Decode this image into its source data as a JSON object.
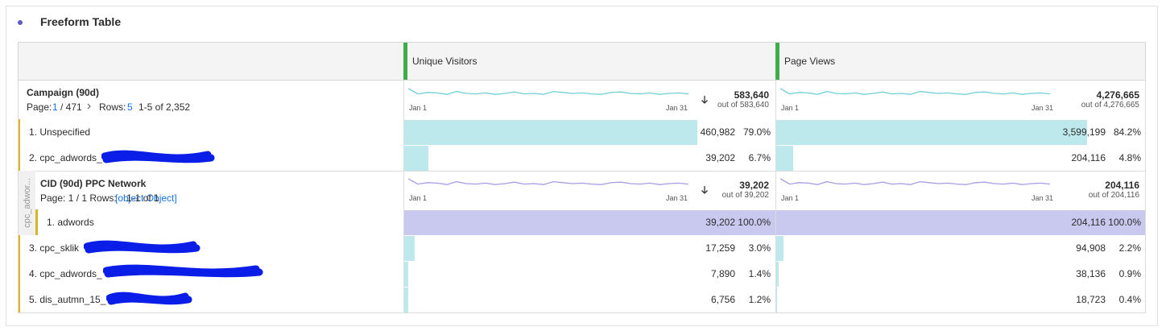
{
  "title": "Freeform Table",
  "columns": [
    "Unique Visitors",
    "Page Views"
  ],
  "dimension": {
    "name": "Campaign (90d)",
    "page_label": "Page:",
    "page": "1",
    "pages": "/ 471",
    "rows_label": "Rows:",
    "rows": "5",
    "range": "1-5 of 2,352",
    "totals": [
      {
        "value": "583,640",
        "out_of": "out of 583,640",
        "start": "Jan 1",
        "end": "Jan 31"
      },
      {
        "value": "4,276,665",
        "out_of": "out of 4,276,665",
        "start": "Jan 1",
        "end": "Jan 31"
      }
    ]
  },
  "rows": [
    {
      "label": "1. Unspecified",
      "cells": [
        {
          "value": "460,982",
          "percent": 79.0,
          "percent_label": "79.0%"
        },
        {
          "value": "3,599,199",
          "percent": 84.2,
          "percent_label": "84.2%"
        }
      ]
    },
    {
      "label": "2. cpc_adwords_",
      "cells": [
        {
          "value": "39,202",
          "percent": 6.7,
          "percent_label": "6.7%"
        },
        {
          "value": "204,116",
          "percent": 4.8,
          "percent_label": "4.8%"
        }
      ]
    },
    {
      "label": "3. cpc_sklik",
      "cells": [
        {
          "value": "17,259",
          "percent": 3.0,
          "percent_label": "3.0%"
        },
        {
          "value": "94,908",
          "percent": 2.2,
          "percent_label": "2.2%"
        }
      ]
    },
    {
      "label": "4. cpc_adwords_",
      "cells": [
        {
          "value": "7,890",
          "percent": 1.4,
          "percent_label": "1.4%"
        },
        {
          "value": "38,136",
          "percent": 0.9,
          "percent_label": "0.9%"
        }
      ]
    },
    {
      "label": "5. dis_autmn_15_",
      "cells": [
        {
          "value": "6,756",
          "percent": 1.2,
          "percent_label": "1.2%"
        },
        {
          "value": "18,723",
          "percent": 0.4,
          "percent_label": "0.4%"
        }
      ]
    }
  ],
  "breakdown": {
    "side_label": "cpc_adwor...",
    "name": "CID (90d) PPC Network",
    "pager": "Page: 1 / 1 Rows:",
    "rows": [
      {
        "label": "1. adwords",
        "cells": [
          {
            "value": "39,202",
            "percent": 100.0,
            "percent_label": "100.0%"
          },
          {
            "value": "204,116",
            "percent": 100.0,
            "percent_label": "100.0%"
          }
        ]
      }
    ],
    "range": "1-1 of 1",
    "totals": [
      {
        "value": "39,202",
        "out_of": "out of 39,202",
        "start": "Jan 1",
        "end": "Jan 31"
      },
      {
        "value": "204,116",
        "out_of": "out of 204,116",
        "start": "Jan 1",
        "end": "Jan 31"
      }
    ]
  }
}
